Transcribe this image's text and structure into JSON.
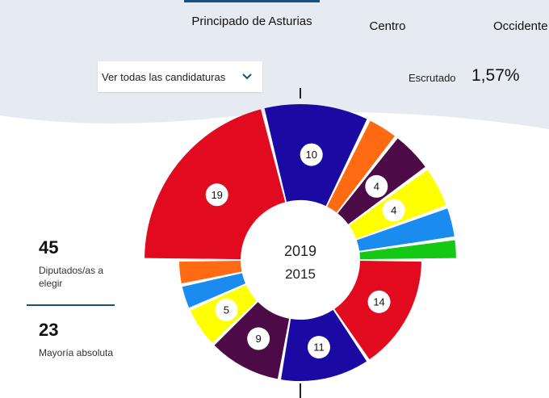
{
  "tabs": [
    {
      "label": "Principado de Asturias",
      "active": true
    },
    {
      "label": "Centro",
      "active": false
    },
    {
      "label": "Occidente",
      "active": false
    }
  ],
  "filter": {
    "label": "Ver todas las candidaturas"
  },
  "scrutiny": {
    "label": "Escrutado",
    "value": "1,57%"
  },
  "stats": {
    "seats": {
      "value": "45",
      "label": "Diputados/as a elegir"
    },
    "majority": {
      "value": "23",
      "label": "Mayoría absoluta"
    }
  },
  "colors": {
    "red": "#e20a1e",
    "blue": "#1a0aa3",
    "orange": "#ff6a13",
    "purple": "#4c0a47",
    "yellow": "#ffff00",
    "lightblue": "#1a8cf0",
    "green": "#14c814",
    "background_band": "#e6ebf2",
    "accent": "#1f4e79"
  },
  "chart_data": [
    {
      "type": "pie",
      "title": "2019",
      "slices": [
        {
          "color": "red",
          "value": 19,
          "label": "19"
        },
        {
          "color": "blue",
          "value": 10,
          "label": "10"
        },
        {
          "color": "orange",
          "value": 3,
          "label": ""
        },
        {
          "color": "purple",
          "value": 4,
          "label": "4"
        },
        {
          "color": "yellow",
          "value": 4,
          "label": "4"
        },
        {
          "color": "lightblue",
          "value": 3,
          "label": ""
        },
        {
          "color": "green",
          "value": 2,
          "label": ""
        }
      ]
    },
    {
      "type": "pie",
      "title": "2015",
      "slices": [
        {
          "color": "red",
          "value": 14,
          "label": "14"
        },
        {
          "color": "blue",
          "value": 11,
          "label": "11"
        },
        {
          "color": "purple",
          "value": 9,
          "label": "9"
        },
        {
          "color": "yellow",
          "value": 5,
          "label": "5"
        },
        {
          "color": "lightblue",
          "value": 3,
          "label": ""
        },
        {
          "color": "orange",
          "value": 3,
          "label": ""
        }
      ]
    }
  ]
}
